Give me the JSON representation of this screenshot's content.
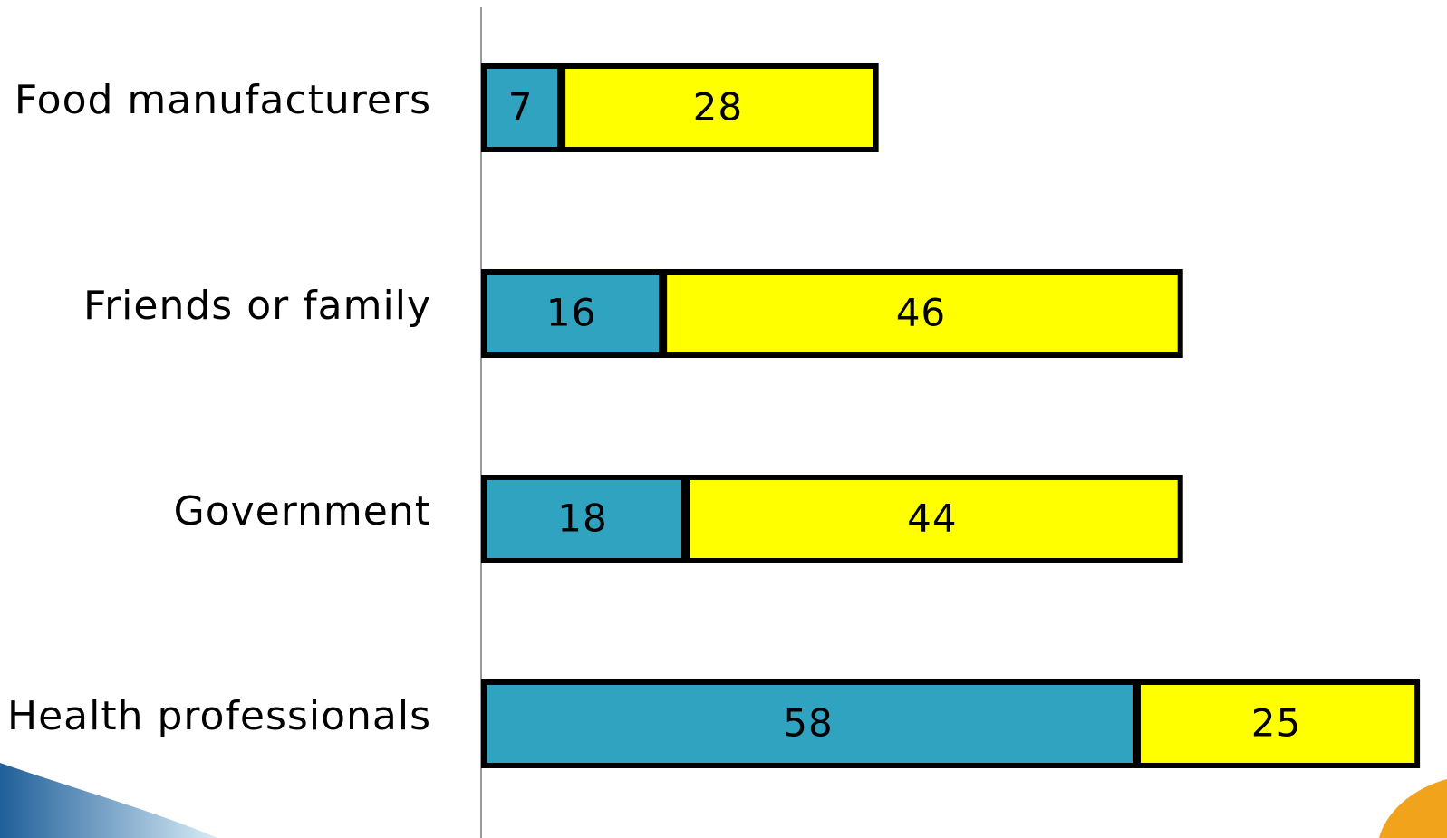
{
  "chart_data": {
    "type": "stacked_bar",
    "orientation": "horizontal",
    "categories": [
      "Food manufacturers",
      "Friends or family",
      "Government",
      "Health professionals"
    ],
    "series": [
      {
        "color": "#2fa3c0",
        "values": [
          7,
          16,
          18,
          58
        ]
      },
      {
        "color": "#ffff00",
        "values": [
          28,
          46,
          44,
          25
        ]
      }
    ],
    "xlim": [
      0,
      85
    ]
  }
}
